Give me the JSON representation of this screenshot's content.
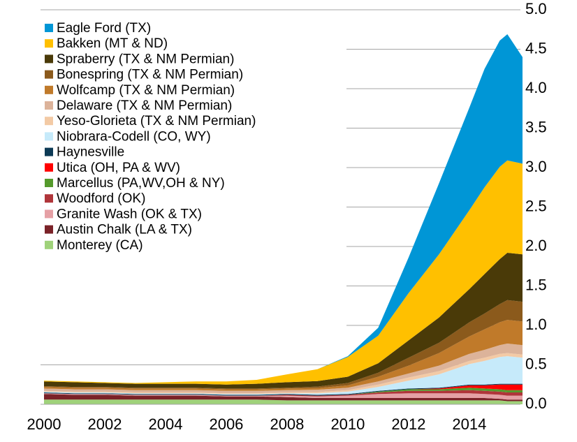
{
  "chart_data": {
    "type": "stacked_area",
    "x": [
      2000,
      2001,
      2002,
      2003,
      2004,
      2005,
      2006,
      2007,
      2008,
      2009,
      2010,
      2011,
      2012,
      2013,
      2014,
      2014.5,
      2015,
      2015.25,
      2015.75
    ],
    "xlim": [
      2000,
      2015.75
    ],
    "xticks": [
      2000,
      2002,
      2004,
      2006,
      2008,
      2010,
      2012,
      2014
    ],
    "ylim": [
      0,
      5
    ],
    "yticks": [
      {
        "value": 0,
        "label": "0.0"
      },
      0.5,
      {
        "value": 1,
        "label": "1.0"
      },
      1.5,
      {
        "value": 2,
        "label": "2.0"
      },
      2.5,
      {
        "value": 3,
        "label": "3.0"
      },
      3.5,
      {
        "value": 4,
        "label": "4.0"
      },
      4.5,
      {
        "value": 5,
        "label": "5.0"
      }
    ],
    "grid": true,
    "legend": "upper left",
    "series": [
      {
        "name": "Eagle Ford (TX)",
        "color": "#0096d6",
        "values": [
          0,
          0,
          0,
          0,
          0,
          0,
          0,
          0,
          0,
          0,
          0.01,
          0.1,
          0.45,
          0.9,
          1.3,
          1.5,
          1.6,
          1.6,
          1.35
        ]
      },
      {
        "name": "Bakken (MT & ND)",
        "color": "#ffc000",
        "values": [
          0.01,
          0.01,
          0.01,
          0.01,
          0.02,
          0.03,
          0.04,
          0.05,
          0.1,
          0.15,
          0.25,
          0.35,
          0.6,
          0.8,
          1.0,
          1.1,
          1.17,
          1.17,
          1.15
        ]
      },
      {
        "name": "Spraberry (TX & NM Permian)",
        "color": "#4a3a08",
        "values": [
          0.06,
          0.06,
          0.05,
          0.05,
          0.05,
          0.05,
          0.05,
          0.06,
          0.07,
          0.07,
          0.08,
          0.12,
          0.22,
          0.32,
          0.42,
          0.5,
          0.57,
          0.6,
          0.6
        ]
      },
      {
        "name": "Bonespring (TX & NM Permian)",
        "color": "#8b5a1c",
        "values": [
          0.01,
          0.01,
          0.01,
          0.01,
          0.01,
          0.01,
          0.01,
          0.01,
          0.01,
          0.02,
          0.03,
          0.05,
          0.1,
          0.13,
          0.18,
          0.2,
          0.23,
          0.25,
          0.25
        ]
      },
      {
        "name": "Wolfcamp (TX & NM Permian)",
        "color": "#c07a2a",
        "values": [
          0.02,
          0.02,
          0.02,
          0.02,
          0.02,
          0.02,
          0.02,
          0.02,
          0.02,
          0.02,
          0.03,
          0.06,
          0.1,
          0.16,
          0.22,
          0.26,
          0.29,
          0.3,
          0.3
        ]
      },
      {
        "name": "Delaware (TX & NM Permian)",
        "color": "#dcb39a",
        "values": [
          0.03,
          0.03,
          0.03,
          0.03,
          0.03,
          0.03,
          0.03,
          0.03,
          0.03,
          0.03,
          0.03,
          0.04,
          0.05,
          0.07,
          0.09,
          0.1,
          0.11,
          0.12,
          0.12
        ]
      },
      {
        "name": "Yeso-Glorieta (TX & NM Permian)",
        "color": "#f3caa5",
        "values": [
          0.01,
          0.01,
          0.01,
          0.01,
          0.01,
          0.01,
          0.01,
          0.01,
          0.01,
          0.015,
          0.02,
          0.03,
          0.04,
          0.04,
          0.04,
          0.04,
          0.04,
          0.04,
          0.04
        ]
      },
      {
        "name": "Niobrara-Codell (CO, WY)",
        "color": "#c6eafa",
        "values": [
          0.01,
          0.01,
          0.01,
          0.01,
          0.01,
          0.01,
          0.01,
          0.01,
          0.01,
          0.02,
          0.03,
          0.05,
          0.1,
          0.17,
          0.26,
          0.3,
          0.34,
          0.35,
          0.33
        ]
      },
      {
        "name": "Haynesville",
        "color": "#0d3a55",
        "values": [
          0.01,
          0.01,
          0.01,
          0.01,
          0.01,
          0.01,
          0.01,
          0.01,
          0.01,
          0.01,
          0.01,
          0.01,
          0.01,
          0.01,
          0.01,
          0.01,
          0.01,
          0.01,
          0.01
        ]
      },
      {
        "name": "Utica (OH, PA & WV)",
        "color": "#ff0000",
        "values": [
          0,
          0,
          0,
          0,
          0,
          0,
          0,
          0,
          0,
          0,
          0,
          0,
          0,
          0.01,
          0.03,
          0.04,
          0.06,
          0.07,
          0.07
        ]
      },
      {
        "name": "Marcellus (PA,WV,OH & NY)",
        "color": "#559a2c",
        "values": [
          0,
          0,
          0,
          0,
          0,
          0,
          0,
          0,
          0,
          0,
          0,
          0.01,
          0.02,
          0.02,
          0.03,
          0.03,
          0.03,
          0.03,
          0.03
        ]
      },
      {
        "name": "Woodford (OK)",
        "color": "#b0353a",
        "values": [
          0,
          0,
          0,
          0,
          0,
          0,
          0,
          0,
          0.01,
          0.01,
          0.01,
          0.02,
          0.03,
          0.03,
          0.04,
          0.04,
          0.04,
          0.04,
          0.04
        ]
      },
      {
        "name": "Granite Wash (OK & TX)",
        "color": "#e5a0a5",
        "values": [
          0.01,
          0.01,
          0.01,
          0.01,
          0.01,
          0.01,
          0.01,
          0.01,
          0.02,
          0.02,
          0.03,
          0.05,
          0.06,
          0.06,
          0.06,
          0.05,
          0.05,
          0.05,
          0.05
        ]
      },
      {
        "name": "Austin Chalk (LA & TX)",
        "color": "#7a2228",
        "values": [
          0.07,
          0.06,
          0.06,
          0.05,
          0.05,
          0.05,
          0.04,
          0.04,
          0.04,
          0.03,
          0.03,
          0.03,
          0.03,
          0.03,
          0.03,
          0.03,
          0.02,
          0.02,
          0.02
        ]
      },
      {
        "name": "Monterey (CA)",
        "color": "#9fd27a",
        "values": [
          0.06,
          0.06,
          0.06,
          0.06,
          0.06,
          0.06,
          0.06,
          0.06,
          0.05,
          0.05,
          0.05,
          0.05,
          0.05,
          0.05,
          0.05,
          0.05,
          0.05,
          0.04,
          0.04
        ]
      }
    ]
  }
}
